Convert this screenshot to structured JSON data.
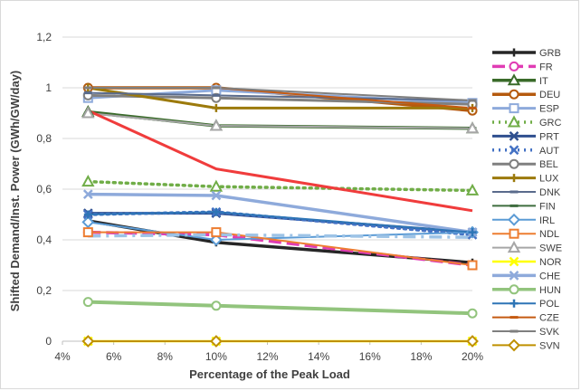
{
  "chart_data": {
    "type": "line",
    "xlabel": "Percentage of the Peak Load",
    "ylabel": "Shifted Demand/Inst. Power (GWh/GW/day)",
    "x_ticks": [
      "4%",
      "6%",
      "8%",
      "10%",
      "12%",
      "14%",
      "16%",
      "18%",
      "20%"
    ],
    "y_ticks": [
      "0",
      "0,2",
      "0,4",
      "0,6",
      "0,8",
      "1",
      "1,2"
    ],
    "xlim": [
      4,
      20
    ],
    "ylim": [
      0,
      1.2
    ],
    "grid": "horizontal",
    "legend_position": "right",
    "x": [
      5,
      10,
      20
    ],
    "series": [
      {
        "name": "GRB",
        "values": [
          0.475,
          0.39,
          0.31
        ],
        "color": "#262626",
        "width": 3.5,
        "dash": "",
        "marker": "plus"
      },
      {
        "name": "FR",
        "values": [
          0.43,
          0.42,
          0.3
        ],
        "color": "#e03cb4",
        "width": 3.5,
        "dash": "14,6",
        "marker": "circle"
      },
      {
        "name": "IT",
        "values": [
          0.905,
          0.85,
          0.84
        ],
        "color": "#3a6b2a",
        "width": 3.5,
        "dash": "",
        "marker": "triangle"
      },
      {
        "name": "DEU",
        "values": [
          1.0,
          1.0,
          0.91
        ],
        "color": "#b55a0e",
        "width": 3.5,
        "dash": "",
        "marker": "circle"
      },
      {
        "name": "ESP",
        "values": [
          0.96,
          0.99,
          0.94
        ],
        "color": "#8eaadb",
        "width": 3,
        "dash": "",
        "marker": "square"
      },
      {
        "name": "GRC",
        "values": [
          0.63,
          0.61,
          0.595
        ],
        "color": "#70ad47",
        "width": 3.5,
        "dash": "2,5",
        "marker": "triangle"
      },
      {
        "name": "PRT",
        "values": [
          0.505,
          0.505,
          0.43
        ],
        "color": "#2f4f8f",
        "width": 3,
        "dash": "",
        "marker": "x"
      },
      {
        "name": "AUT",
        "values": [
          0.5,
          0.51,
          0.42
        ],
        "color": "#4472c4",
        "width": 3.5,
        "dash": "2,5",
        "marker": "x"
      },
      {
        "name": "BEL",
        "values": [
          0.97,
          0.96,
          0.935
        ],
        "color": "#808080",
        "width": 3,
        "dash": "",
        "marker": "circle"
      },
      {
        "name": "LUX",
        "values": [
          1.0,
          0.92,
          0.92
        ],
        "color": "#9c7a0c",
        "width": 3,
        "dash": "",
        "marker": "plus"
      },
      {
        "name": "DNK",
        "values": [
          0.98,
          0.97,
          0.95
        ],
        "color": "#5a6b8c",
        "width": 2,
        "dash": "",
        "marker": "dash"
      },
      {
        "name": "FIN",
        "values": [
          0.9,
          0.85,
          0.84
        ],
        "color": "#3f6d3f",
        "width": 2,
        "dash": "",
        "marker": "dash"
      },
      {
        "name": "IRL",
        "values": [
          0.47,
          0.4,
          0.43
        ],
        "color": "#5b9bd5",
        "width": 2,
        "dash": "",
        "marker": "diamond"
      },
      {
        "name": "NDL",
        "values": [
          0.43,
          0.43,
          0.3
        ],
        "color": "#ed7d31",
        "width": 2,
        "dash": "",
        "marker": "square"
      },
      {
        "name": "SWE",
        "values": [
          0.9,
          0.85,
          0.84
        ],
        "color": "#a6a6a6",
        "width": 2,
        "dash": "",
        "marker": "triangle"
      },
      {
        "name": "NOR",
        "values": [
          0.0,
          0.0,
          0.0
        ],
        "color": "#ffff00",
        "width": 2.5,
        "dash": "",
        "marker": "x"
      },
      {
        "name": "CHE",
        "values": [
          0.58,
          0.575,
          0.43
        ],
        "color": "#8eaadb",
        "width": 3.5,
        "dash": "",
        "marker": "x"
      },
      {
        "name": "HUN",
        "values": [
          0.155,
          0.14,
          0.11
        ],
        "color": "#92c47d",
        "width": 4,
        "dash": "",
        "marker": "circle"
      },
      {
        "name": "POL",
        "values": [
          0.5,
          0.51,
          0.43
        ],
        "color": "#2e75b6",
        "width": 2,
        "dash": "",
        "marker": "plus"
      },
      {
        "name": "CZE",
        "values": [
          1.0,
          1.0,
          0.92
        ],
        "color": "#c55a11",
        "width": 2,
        "dash": "",
        "marker": "dash"
      },
      {
        "name": "SVK",
        "values": [
          1.0,
          1.0,
          0.95
        ],
        "color": "#7f7f7f",
        "width": 2,
        "dash": "",
        "marker": "dash"
      },
      {
        "name": "SVN",
        "values": [
          0.0,
          0.0,
          0.0
        ],
        "color": "#bf9000",
        "width": 2,
        "dash": "",
        "marker": "diamond"
      },
      {
        "name": "",
        "values": [
          0.91,
          0.68,
          0.515
        ],
        "color": "#f03c3c",
        "width": 3,
        "dash": "",
        "marker": "none"
      },
      {
        "name": "",
        "values": [
          0.415,
          0.42,
          0.41
        ],
        "color": "#9dc3e6",
        "width": 3.5,
        "dash": "14,6,3,6",
        "marker": "none"
      }
    ]
  }
}
